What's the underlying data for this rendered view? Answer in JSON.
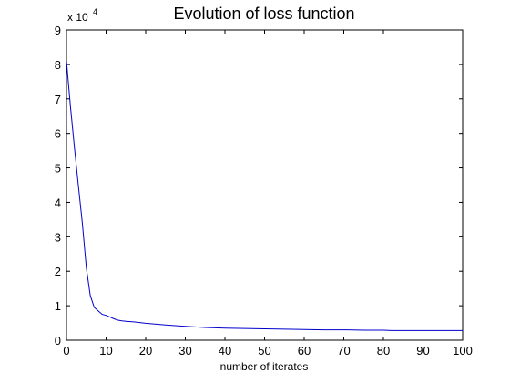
{
  "chart_data": {
    "type": "line",
    "title": "Evolution of loss function",
    "xlabel": "number of iterates",
    "ylabel": "",
    "y_multiplier_label": "x 10",
    "y_multiplier_exponent": "4",
    "xlim": [
      0,
      100
    ],
    "ylim": [
      0,
      9
    ],
    "xticks": [
      0,
      10,
      20,
      30,
      40,
      50,
      60,
      70,
      80,
      90,
      100
    ],
    "yticks": [
      0,
      1,
      2,
      3,
      4,
      5,
      6,
      7,
      8,
      9
    ],
    "grid": false,
    "series": [
      {
        "color": "#0000cc",
        "x": [
          0,
          1,
          2,
          3,
          4,
          5,
          6,
          7,
          8,
          9,
          10,
          11,
          12,
          13,
          14,
          15,
          17,
          20,
          25,
          30,
          35,
          40,
          45,
          50,
          55,
          60,
          65,
          70,
          75,
          80,
          82,
          85,
          90,
          95,
          100
        ],
        "y": [
          8.1,
          6.8,
          5.6,
          4.5,
          3.4,
          2.1,
          1.3,
          0.95,
          0.85,
          0.75,
          0.72,
          0.67,
          0.62,
          0.58,
          0.56,
          0.55,
          0.53,
          0.49,
          0.44,
          0.4,
          0.37,
          0.35,
          0.34,
          0.33,
          0.32,
          0.31,
          0.3,
          0.3,
          0.29,
          0.29,
          0.28,
          0.28,
          0.28,
          0.28,
          0.28
        ]
      }
    ]
  }
}
